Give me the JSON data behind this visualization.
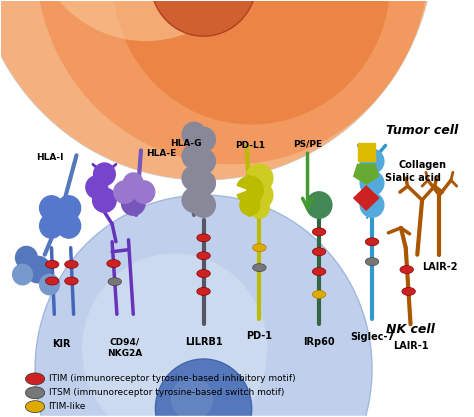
{
  "bg_color": "#ffffff",
  "tumor_cell_label": "Tumor cell",
  "nk_cell_label": "NK cell",
  "legend_items": [
    {
      "color": "#CC2222",
      "label": "ITIM (immunoreceptor tyrosine-based inhibitory motif)"
    },
    {
      "color": "#777777",
      "label": "ITSM (immunoreceptor tyrosine-based switch motif)"
    },
    {
      "color": "#DDAA00",
      "label": "ITIM-like"
    }
  ]
}
